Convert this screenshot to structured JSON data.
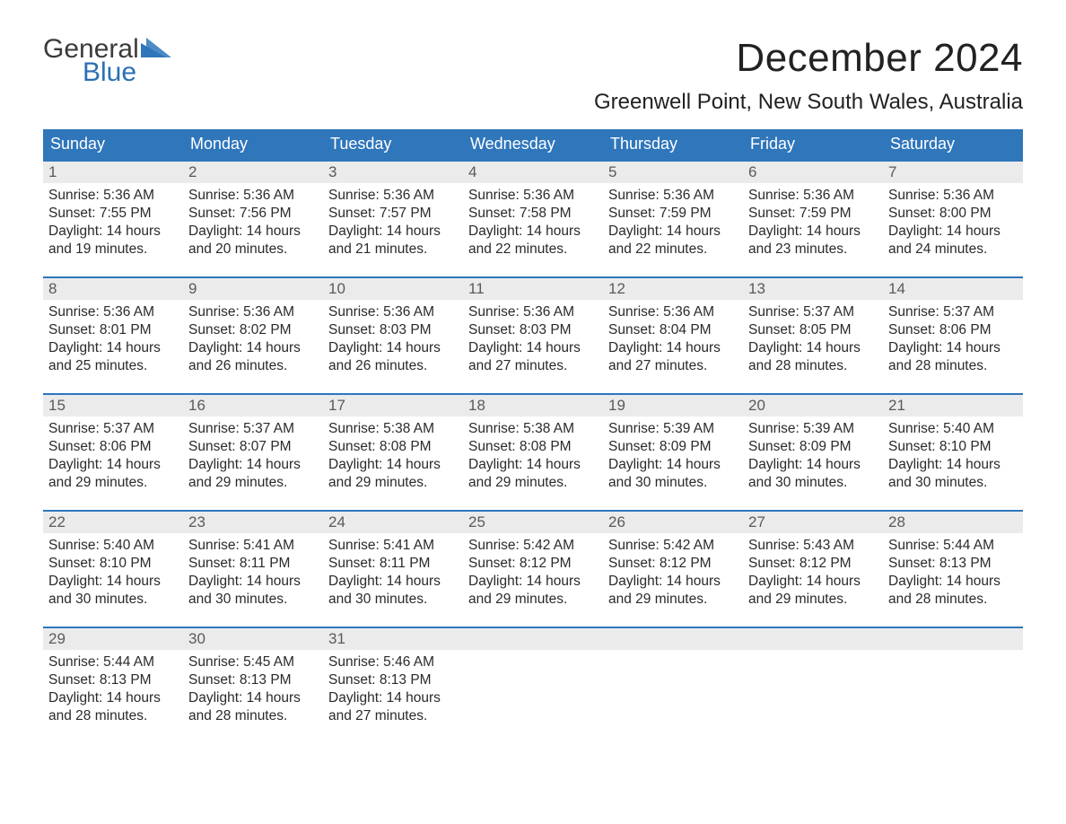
{
  "logo": {
    "text1": "General",
    "text2": "Blue",
    "tri_color": "#2f76bb"
  },
  "title": "December 2024",
  "location": "Greenwell Point, New South Wales, Australia",
  "colors": {
    "header_bg": "#2f76bb",
    "header_text": "#ffffff",
    "daynum_bg": "#ebebeb",
    "week_border": "#2f76bb",
    "body_bg": "#ffffff",
    "text": "#2a2a2a",
    "logo_grey": "#3b3b3b",
    "logo_blue": "#2a6fb4"
  },
  "day_headers": [
    "Sunday",
    "Monday",
    "Tuesday",
    "Wednesday",
    "Thursday",
    "Friday",
    "Saturday"
  ],
  "weeks": [
    [
      {
        "n": "1",
        "sr": "Sunrise: 5:36 AM",
        "ss": "Sunset: 7:55 PM",
        "d1": "Daylight: 14 hours",
        "d2": "and 19 minutes."
      },
      {
        "n": "2",
        "sr": "Sunrise: 5:36 AM",
        "ss": "Sunset: 7:56 PM",
        "d1": "Daylight: 14 hours",
        "d2": "and 20 minutes."
      },
      {
        "n": "3",
        "sr": "Sunrise: 5:36 AM",
        "ss": "Sunset: 7:57 PM",
        "d1": "Daylight: 14 hours",
        "d2": "and 21 minutes."
      },
      {
        "n": "4",
        "sr": "Sunrise: 5:36 AM",
        "ss": "Sunset: 7:58 PM",
        "d1": "Daylight: 14 hours",
        "d2": "and 22 minutes."
      },
      {
        "n": "5",
        "sr": "Sunrise: 5:36 AM",
        "ss": "Sunset: 7:59 PM",
        "d1": "Daylight: 14 hours",
        "d2": "and 22 minutes."
      },
      {
        "n": "6",
        "sr": "Sunrise: 5:36 AM",
        "ss": "Sunset: 7:59 PM",
        "d1": "Daylight: 14 hours",
        "d2": "and 23 minutes."
      },
      {
        "n": "7",
        "sr": "Sunrise: 5:36 AM",
        "ss": "Sunset: 8:00 PM",
        "d1": "Daylight: 14 hours",
        "d2": "and 24 minutes."
      }
    ],
    [
      {
        "n": "8",
        "sr": "Sunrise: 5:36 AM",
        "ss": "Sunset: 8:01 PM",
        "d1": "Daylight: 14 hours",
        "d2": "and 25 minutes."
      },
      {
        "n": "9",
        "sr": "Sunrise: 5:36 AM",
        "ss": "Sunset: 8:02 PM",
        "d1": "Daylight: 14 hours",
        "d2": "and 26 minutes."
      },
      {
        "n": "10",
        "sr": "Sunrise: 5:36 AM",
        "ss": "Sunset: 8:03 PM",
        "d1": "Daylight: 14 hours",
        "d2": "and 26 minutes."
      },
      {
        "n": "11",
        "sr": "Sunrise: 5:36 AM",
        "ss": "Sunset: 8:03 PM",
        "d1": "Daylight: 14 hours",
        "d2": "and 27 minutes."
      },
      {
        "n": "12",
        "sr": "Sunrise: 5:36 AM",
        "ss": "Sunset: 8:04 PM",
        "d1": "Daylight: 14 hours",
        "d2": "and 27 minutes."
      },
      {
        "n": "13",
        "sr": "Sunrise: 5:37 AM",
        "ss": "Sunset: 8:05 PM",
        "d1": "Daylight: 14 hours",
        "d2": "and 28 minutes."
      },
      {
        "n": "14",
        "sr": "Sunrise: 5:37 AM",
        "ss": "Sunset: 8:06 PM",
        "d1": "Daylight: 14 hours",
        "d2": "and 28 minutes."
      }
    ],
    [
      {
        "n": "15",
        "sr": "Sunrise: 5:37 AM",
        "ss": "Sunset: 8:06 PM",
        "d1": "Daylight: 14 hours",
        "d2": "and 29 minutes."
      },
      {
        "n": "16",
        "sr": "Sunrise: 5:37 AM",
        "ss": "Sunset: 8:07 PM",
        "d1": "Daylight: 14 hours",
        "d2": "and 29 minutes."
      },
      {
        "n": "17",
        "sr": "Sunrise: 5:38 AM",
        "ss": "Sunset: 8:08 PM",
        "d1": "Daylight: 14 hours",
        "d2": "and 29 minutes."
      },
      {
        "n": "18",
        "sr": "Sunrise: 5:38 AM",
        "ss": "Sunset: 8:08 PM",
        "d1": "Daylight: 14 hours",
        "d2": "and 29 minutes."
      },
      {
        "n": "19",
        "sr": "Sunrise: 5:39 AM",
        "ss": "Sunset: 8:09 PM",
        "d1": "Daylight: 14 hours",
        "d2": "and 30 minutes."
      },
      {
        "n": "20",
        "sr": "Sunrise: 5:39 AM",
        "ss": "Sunset: 8:09 PM",
        "d1": "Daylight: 14 hours",
        "d2": "and 30 minutes."
      },
      {
        "n": "21",
        "sr": "Sunrise: 5:40 AM",
        "ss": "Sunset: 8:10 PM",
        "d1": "Daylight: 14 hours",
        "d2": "and 30 minutes."
      }
    ],
    [
      {
        "n": "22",
        "sr": "Sunrise: 5:40 AM",
        "ss": "Sunset: 8:10 PM",
        "d1": "Daylight: 14 hours",
        "d2": "and 30 minutes."
      },
      {
        "n": "23",
        "sr": "Sunrise: 5:41 AM",
        "ss": "Sunset: 8:11 PM",
        "d1": "Daylight: 14 hours",
        "d2": "and 30 minutes."
      },
      {
        "n": "24",
        "sr": "Sunrise: 5:41 AM",
        "ss": "Sunset: 8:11 PM",
        "d1": "Daylight: 14 hours",
        "d2": "and 30 minutes."
      },
      {
        "n": "25",
        "sr": "Sunrise: 5:42 AM",
        "ss": "Sunset: 8:12 PM",
        "d1": "Daylight: 14 hours",
        "d2": "and 29 minutes."
      },
      {
        "n": "26",
        "sr": "Sunrise: 5:42 AM",
        "ss": "Sunset: 8:12 PM",
        "d1": "Daylight: 14 hours",
        "d2": "and 29 minutes."
      },
      {
        "n": "27",
        "sr": "Sunrise: 5:43 AM",
        "ss": "Sunset: 8:12 PM",
        "d1": "Daylight: 14 hours",
        "d2": "and 29 minutes."
      },
      {
        "n": "28",
        "sr": "Sunrise: 5:44 AM",
        "ss": "Sunset: 8:13 PM",
        "d1": "Daylight: 14 hours",
        "d2": "and 28 minutes."
      }
    ],
    [
      {
        "n": "29",
        "sr": "Sunrise: 5:44 AM",
        "ss": "Sunset: 8:13 PM",
        "d1": "Daylight: 14 hours",
        "d2": "and 28 minutes."
      },
      {
        "n": "30",
        "sr": "Sunrise: 5:45 AM",
        "ss": "Sunset: 8:13 PM",
        "d1": "Daylight: 14 hours",
        "d2": "and 28 minutes."
      },
      {
        "n": "31",
        "sr": "Sunrise: 5:46 AM",
        "ss": "Sunset: 8:13 PM",
        "d1": "Daylight: 14 hours",
        "d2": "and 27 minutes."
      },
      {
        "n": "",
        "sr": "",
        "ss": "",
        "d1": "",
        "d2": ""
      },
      {
        "n": "",
        "sr": "",
        "ss": "",
        "d1": "",
        "d2": ""
      },
      {
        "n": "",
        "sr": "",
        "ss": "",
        "d1": "",
        "d2": ""
      },
      {
        "n": "",
        "sr": "",
        "ss": "",
        "d1": "",
        "d2": ""
      }
    ]
  ]
}
